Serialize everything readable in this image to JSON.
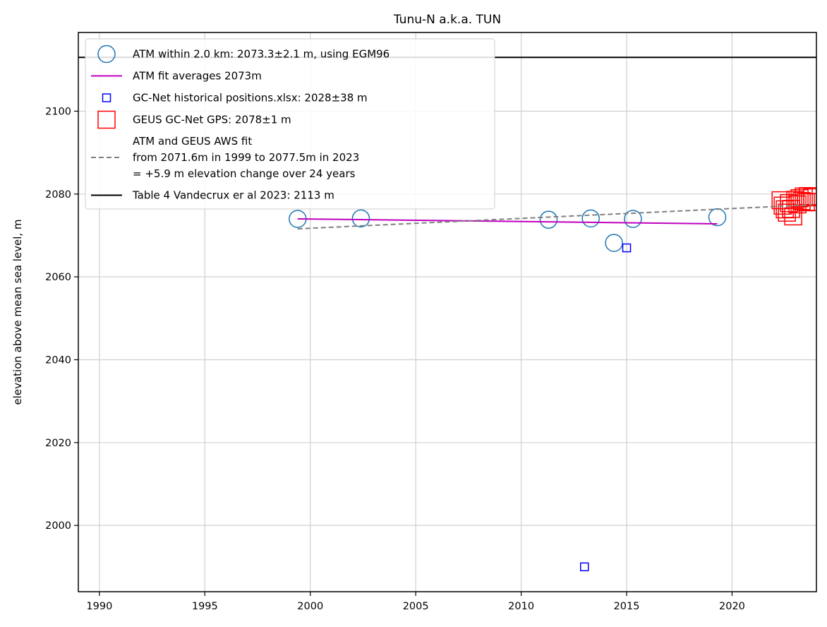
{
  "chart_data": {
    "type": "scatter",
    "title": "Tunu-N a.k.a. TUN",
    "xlabel": "",
    "ylabel": "elevation above mean sea level, m",
    "xlim": [
      1989,
      2024
    ],
    "ylim": [
      1984,
      2119
    ],
    "grid": true,
    "legend_position": "top-left",
    "x_ticks": [
      1990,
      1995,
      2000,
      2005,
      2010,
      2015,
      2020
    ],
    "y_ticks": [
      2000,
      2020,
      2040,
      2060,
      2080,
      2100
    ],
    "series": [
      {
        "name": "ATM within 2.0 km: 2073.3±2.1 m, using EGM96",
        "marker": "circle-open",
        "color": "#1f77b4",
        "points": [
          [
            1999.4,
            2074.0
          ],
          [
            2002.4,
            2074.1
          ],
          [
            2011.3,
            2073.8
          ],
          [
            2013.3,
            2074.1
          ],
          [
            2014.4,
            2068.2
          ],
          [
            2015.3,
            2074.0
          ],
          [
            2019.3,
            2074.4
          ]
        ]
      },
      {
        "name": "ATM fit averages 2073m",
        "marker": "line",
        "color": "#bf00bf",
        "points": [
          [
            1999.4,
            2074.0
          ],
          [
            2019.3,
            2072.8
          ]
        ]
      },
      {
        "name": "GC-Net historical positions.xlsx: 2028±38 m",
        "marker": "square-open-small",
        "color": "#0000ff",
        "points": [
          [
            2013.0,
            1990.0
          ],
          [
            2015.0,
            2067.0
          ]
        ]
      },
      {
        "name": "GEUS GC-Net GPS: 2078±1 m",
        "marker": "square-open-large",
        "color": "#ff0000",
        "points": [
          [
            2022.3,
            2078.5
          ],
          [
            2022.4,
            2077.2
          ],
          [
            2022.5,
            2076.3
          ],
          [
            2022.6,
            2075.5
          ],
          [
            2022.7,
            2077.8
          ],
          [
            2022.8,
            2076.4
          ],
          [
            2022.9,
            2074.6
          ],
          [
            2023.0,
            2078.6
          ],
          [
            2023.1,
            2077.5
          ],
          [
            2023.2,
            2079.0
          ],
          [
            2023.3,
            2078.3
          ],
          [
            2023.4,
            2079.4
          ],
          [
            2023.5,
            2078.0
          ],
          [
            2023.6,
            2079.5
          ],
          [
            2023.7,
            2078.1
          ],
          [
            2023.8,
            2079.2
          ]
        ]
      },
      {
        "name": "ATM and GEUS AWS fit\nfrom 2071.6m in 1999 to 2077.5m in 2023\n= +5.9 m elevation change over 24 years",
        "marker": "dashed-line",
        "color": "#808080",
        "points": [
          [
            1999.4,
            2071.6
          ],
          [
            2023.8,
            2077.4
          ]
        ]
      },
      {
        "name": "Table 4 Vandecrux er al 2023: 2113 m",
        "marker": "hline",
        "color": "#000000",
        "y": 2113
      }
    ]
  }
}
